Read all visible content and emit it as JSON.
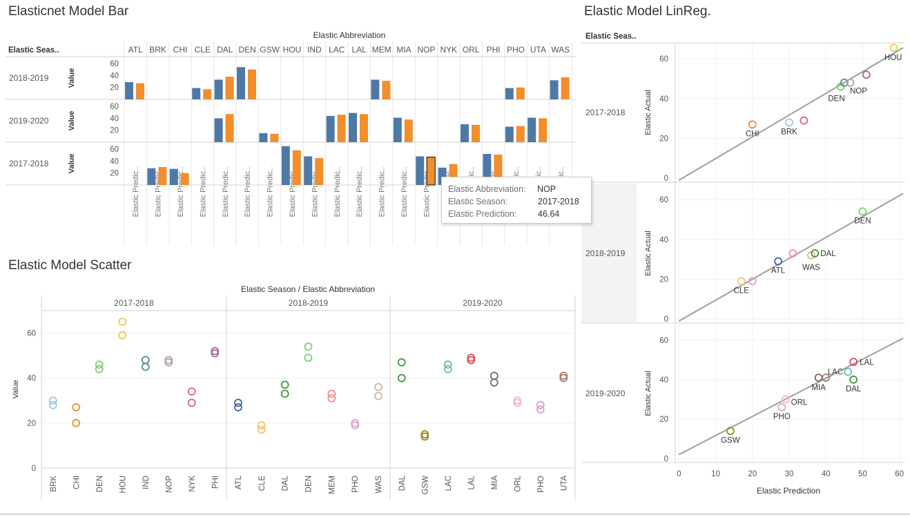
{
  "titles": {
    "bar": "Elasticnet Model Bar",
    "linreg": "Elastic Model LinReg.",
    "scatter": "Elastic Model Scatter"
  },
  "colors": {
    "actual": "#4e79a7",
    "prediction": "#f28e2b",
    "trend": "#9e9e9e",
    "teams": {
      "ATL": "#3f6a9a",
      "BRK": "#9cc6e4",
      "CHI": "#ef8e22",
      "CLE": "#f9be7a",
      "DAL": "#3a9a3a",
      "DEN": "#7ccd71",
      "GSW": "#9a8a12",
      "HOU": "#eecb45",
      "IND": "#4b8c8f",
      "LAC": "#6fbab2",
      "LAL": "#d94b55",
      "MEM": "#f08f93",
      "MIA": "#7c6a62",
      "NOP": "#b3a49e",
      "NYK": "#d8608f",
      "ORL": "#f5b4c8",
      "PHI": "#a6659a",
      "PHO": "#d6a4cc",
      "UTA": "#a67e6c",
      "WAS": "#d4b49e"
    }
  },
  "bar": {
    "column_header": "Elastic Abbreviation",
    "row_header": "Elastic Seas..",
    "value_label": "Value",
    "measure_label": "Elastic Predic..",
    "teams": [
      "ATL",
      "BRK",
      "CHI",
      "CLE",
      "DAL",
      "DEN",
      "GSW",
      "HOU",
      "IND",
      "LAC",
      "LAL",
      "MEM",
      "MIA",
      "NOP",
      "NYK",
      "ORL",
      "PHI",
      "PHO",
      "UTA",
      "WAS"
    ],
    "seasons": [
      "2018-2019",
      "2019-2020",
      "2017-2018"
    ],
    "yticks": [
      20,
      40,
      60
    ],
    "ymax": 67
  },
  "tooltip": {
    "rows": [
      {
        "key": "Elastic Abbreviation:",
        "value": "NOP"
      },
      {
        "key": "Elastic Season:",
        "value": "2017-2018"
      },
      {
        "key": "Elastic Prediction:",
        "value": "46.64"
      }
    ]
  },
  "scatter": {
    "header": "Elastic Season / Elastic Abbreviation",
    "ylabel": "Value",
    "yticks": [
      0,
      20,
      40,
      60
    ],
    "panels": [
      {
        "season": "2017-2018",
        "teams": [
          "BRK",
          "CHI",
          "DEN",
          "HOU",
          "IND",
          "NOP",
          "NYK",
          "PHI"
        ]
      },
      {
        "season": "2018-2019",
        "teams": [
          "ATL",
          "CLE",
          "DAL",
          "DEN",
          "MEM",
          "PHO",
          "WAS"
        ]
      },
      {
        "season": "2019-2020",
        "teams": [
          "DAL",
          "GSW",
          "LAC",
          "LAL",
          "MIA",
          "ORL",
          "PHO",
          "UTA"
        ]
      }
    ]
  },
  "linreg": {
    "row_header": "Elastic Seas..",
    "ylabel": "Elastic Actual",
    "xlabel": "Elastic Prediction",
    "xticks": [
      0,
      10,
      20,
      30,
      40,
      50,
      60
    ],
    "yticks": [
      0,
      20,
      40,
      60
    ],
    "seasons": [
      "2017-2018",
      "2018-2019",
      "2019-2020"
    ]
  },
  "chart_data": [
    {
      "type": "bar",
      "title": "Elasticnet Model Bar",
      "categories": [
        "ATL",
        "BRK",
        "CHI",
        "CLE",
        "DAL",
        "DEN",
        "GSW",
        "HOU",
        "IND",
        "LAC",
        "LAL",
        "MEM",
        "MIA",
        "NOP",
        "NYK",
        "ORL",
        "PHI",
        "PHO",
        "UTA",
        "WAS"
      ],
      "series_names": [
        "Elastic Actual",
        "Elastic Prediction"
      ],
      "data": {
        "2018-2019": {
          "ATL": [
            29,
            27
          ],
          "CLE": [
            19,
            17
          ],
          "DAL": [
            33,
            38
          ],
          "DEN": [
            54,
            50
          ],
          "MEM": [
            33,
            31
          ],
          "PHO": [
            19,
            20
          ],
          "WAS": [
            32,
            37
          ]
        },
        "2019-2020": {
          "DAL": [
            40,
            47
          ],
          "GSW": [
            15,
            14
          ],
          "LAC": [
            44,
            46
          ],
          "LAL": [
            49,
            47
          ],
          "MIA": [
            41,
            38
          ],
          "ORL": [
            30,
            29
          ],
          "PHO": [
            26,
            27
          ],
          "UTA": [
            41,
            40
          ]
        },
        "2017-2018": {
          "BRK": [
            28,
            30
          ],
          "CHI": [
            27,
            20
          ],
          "HOU": [
            65,
            58
          ],
          "IND": [
            48,
            45
          ],
          "NOP": [
            48,
            46.64
          ],
          "NYK": [
            29,
            35
          ],
          "PHI": [
            52,
            51
          ]
        }
      },
      "ylim": [
        0,
        67
      ]
    },
    {
      "type": "scatter",
      "title": "Elastic Model Scatter",
      "ylabel": "Value",
      "ylim": [
        0,
        70
      ],
      "data": {
        "2017-2018": {
          "BRK": [
            28,
            30
          ],
          "CHI": [
            27,
            20
          ],
          "DEN": [
            46,
            44
          ],
          "HOU": [
            65,
            59
          ],
          "IND": [
            48,
            45
          ],
          "NOP": [
            48,
            47
          ],
          "NYK": [
            29,
            34
          ],
          "PHI": [
            52,
            51
          ]
        },
        "2018-2019": {
          "ATL": [
            29,
            27
          ],
          "CLE": [
            19,
            17
          ],
          "DAL": [
            33,
            37
          ],
          "DEN": [
            54,
            49
          ],
          "MEM": [
            33,
            31
          ],
          "PHO": [
            19,
            20
          ],
          "WAS": [
            32,
            36
          ]
        },
        "2019-2020": {
          "DAL": [
            40,
            47
          ],
          "GSW": [
            15,
            14
          ],
          "LAC": [
            44,
            46
          ],
          "LAL": [
            49,
            48
          ],
          "MIA": [
            41,
            38
          ],
          "ORL": [
            30,
            29
          ],
          "PHO": [
            26,
            28
          ],
          "UTA": [
            41,
            40
          ]
        }
      }
    },
    {
      "type": "scatter",
      "title": "Elastic Model LinReg.",
      "xlabel": "Elastic Prediction",
      "ylabel": "Elastic Actual",
      "xlim": [
        -1,
        61
      ],
      "ylim": [
        -2,
        68
      ],
      "panels": {
        "2017-2018": {
          "points": [
            {
              "team": "HOU",
              "x": 58.5,
              "y": 65.5,
              "label": true
            },
            {
              "team": "CHI",
              "x": 20,
              "y": 27,
              "label": true
            },
            {
              "team": "BRK",
              "x": 30,
              "y": 28,
              "label": true
            },
            {
              "team": "NYK",
              "x": 34,
              "y": 29,
              "label": false
            },
            {
              "team": "DEN",
              "x": 44,
              "y": 46,
              "label": true
            },
            {
              "team": "IND",
              "x": 45,
              "y": 48,
              "label": false
            },
            {
              "team": "NOP",
              "x": 46.64,
              "y": 48,
              "label": true
            },
            {
              "team": "PHI",
              "x": 51,
              "y": 52,
              "label": false
            }
          ],
          "trend": [
            [
              0,
              -1
            ],
            [
              61,
              65.5
            ]
          ]
        },
        "2018-2019": {
          "points": [
            {
              "team": "DEN",
              "x": 50,
              "y": 54,
              "label": true
            },
            {
              "team": "ATL",
              "x": 27,
              "y": 29,
              "label": true
            },
            {
              "team": "MEM",
              "x": 31,
              "y": 33,
              "label": false
            },
            {
              "team": "WAS",
              "x": 36,
              "y": 32,
              "label": true
            },
            {
              "team": "DAL",
              "x": 37,
              "y": 33,
              "label": true
            },
            {
              "team": "CLE",
              "x": 17,
              "y": 19,
              "label": true
            },
            {
              "team": "PHO",
              "x": 20,
              "y": 19,
              "label": false
            }
          ],
          "trend": [
            [
              0,
              -1
            ],
            [
              61,
              63
            ]
          ]
        },
        "2019-2020": {
          "points": [
            {
              "team": "LAC",
              "x": 46,
              "y": 44,
              "label": true
            },
            {
              "team": "LAL",
              "x": 47.5,
              "y": 49,
              "label": true
            },
            {
              "team": "DAL",
              "x": 47.5,
              "y": 40,
              "label": true
            },
            {
              "team": "MIA",
              "x": 38,
              "y": 41,
              "label": true
            },
            {
              "team": "UTA",
              "x": 40,
              "y": 41,
              "label": false
            },
            {
              "team": "ORL",
              "x": 29,
              "y": 30,
              "label": true
            },
            {
              "team": "PHO",
              "x": 28,
              "y": 26,
              "label": true
            },
            {
              "team": "GSW",
              "x": 14,
              "y": 14,
              "label": true
            }
          ],
          "trend": [
            [
              0,
              2
            ],
            [
              61,
              61
            ]
          ]
        }
      }
    }
  ]
}
